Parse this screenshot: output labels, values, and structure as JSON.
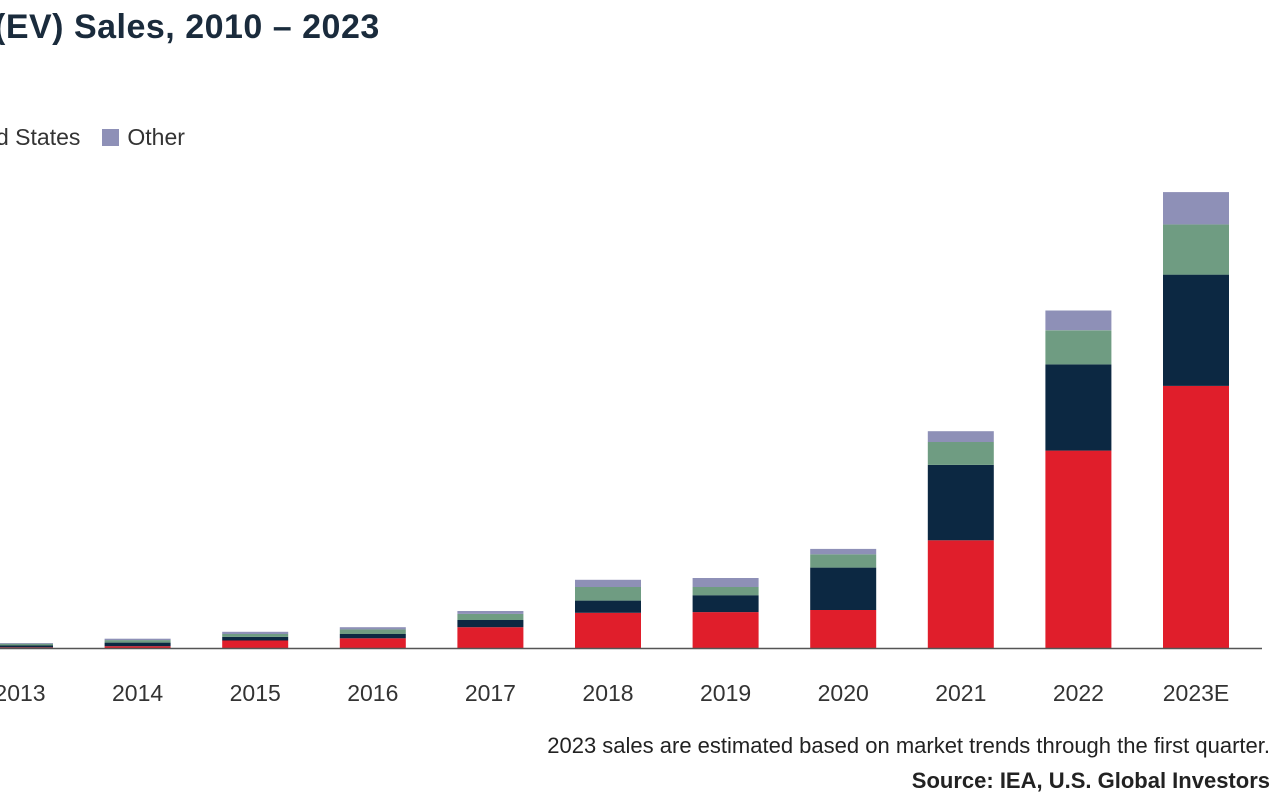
{
  "chart_data": {
    "type": "bar",
    "stacked": true,
    "title": "(EV) Sales, 2010 – 2023",
    "legend_visible": [
      "d States",
      "Other"
    ],
    "categories": [
      "2013",
      "2014",
      "2015",
      "2016",
      "2017",
      "2018",
      "2019",
      "2020",
      "2021",
      "2022",
      "2023E"
    ],
    "series": [
      {
        "name": "",
        "color": "#e01e2b",
        "values": [
          0.02,
          0.05,
          0.21,
          0.27,
          0.58,
          0.98,
          1.0,
          1.06,
          3.0,
          5.5,
          7.3
        ]
      },
      {
        "name": "",
        "color": "#0c2842",
        "values": [
          0.05,
          0.1,
          0.1,
          0.12,
          0.2,
          0.34,
          0.47,
          1.18,
          2.1,
          2.4,
          3.1
        ]
      },
      {
        "name": "",
        "color": "#6f9c82",
        "values": [
          0.05,
          0.07,
          0.08,
          0.13,
          0.17,
          0.38,
          0.23,
          0.37,
          0.64,
          0.95,
          1.4
        ]
      },
      {
        "name": "Other",
        "color": "#8e90b7",
        "values": [
          0.02,
          0.04,
          0.06,
          0.06,
          0.08,
          0.2,
          0.25,
          0.15,
          0.3,
          0.55,
          0.9
        ]
      }
    ],
    "footnote": "2023 sales are estimated based on market trends through the first quarter.",
    "source": "Source: IEA, U.S. Global Investors",
    "grid": false
  }
}
